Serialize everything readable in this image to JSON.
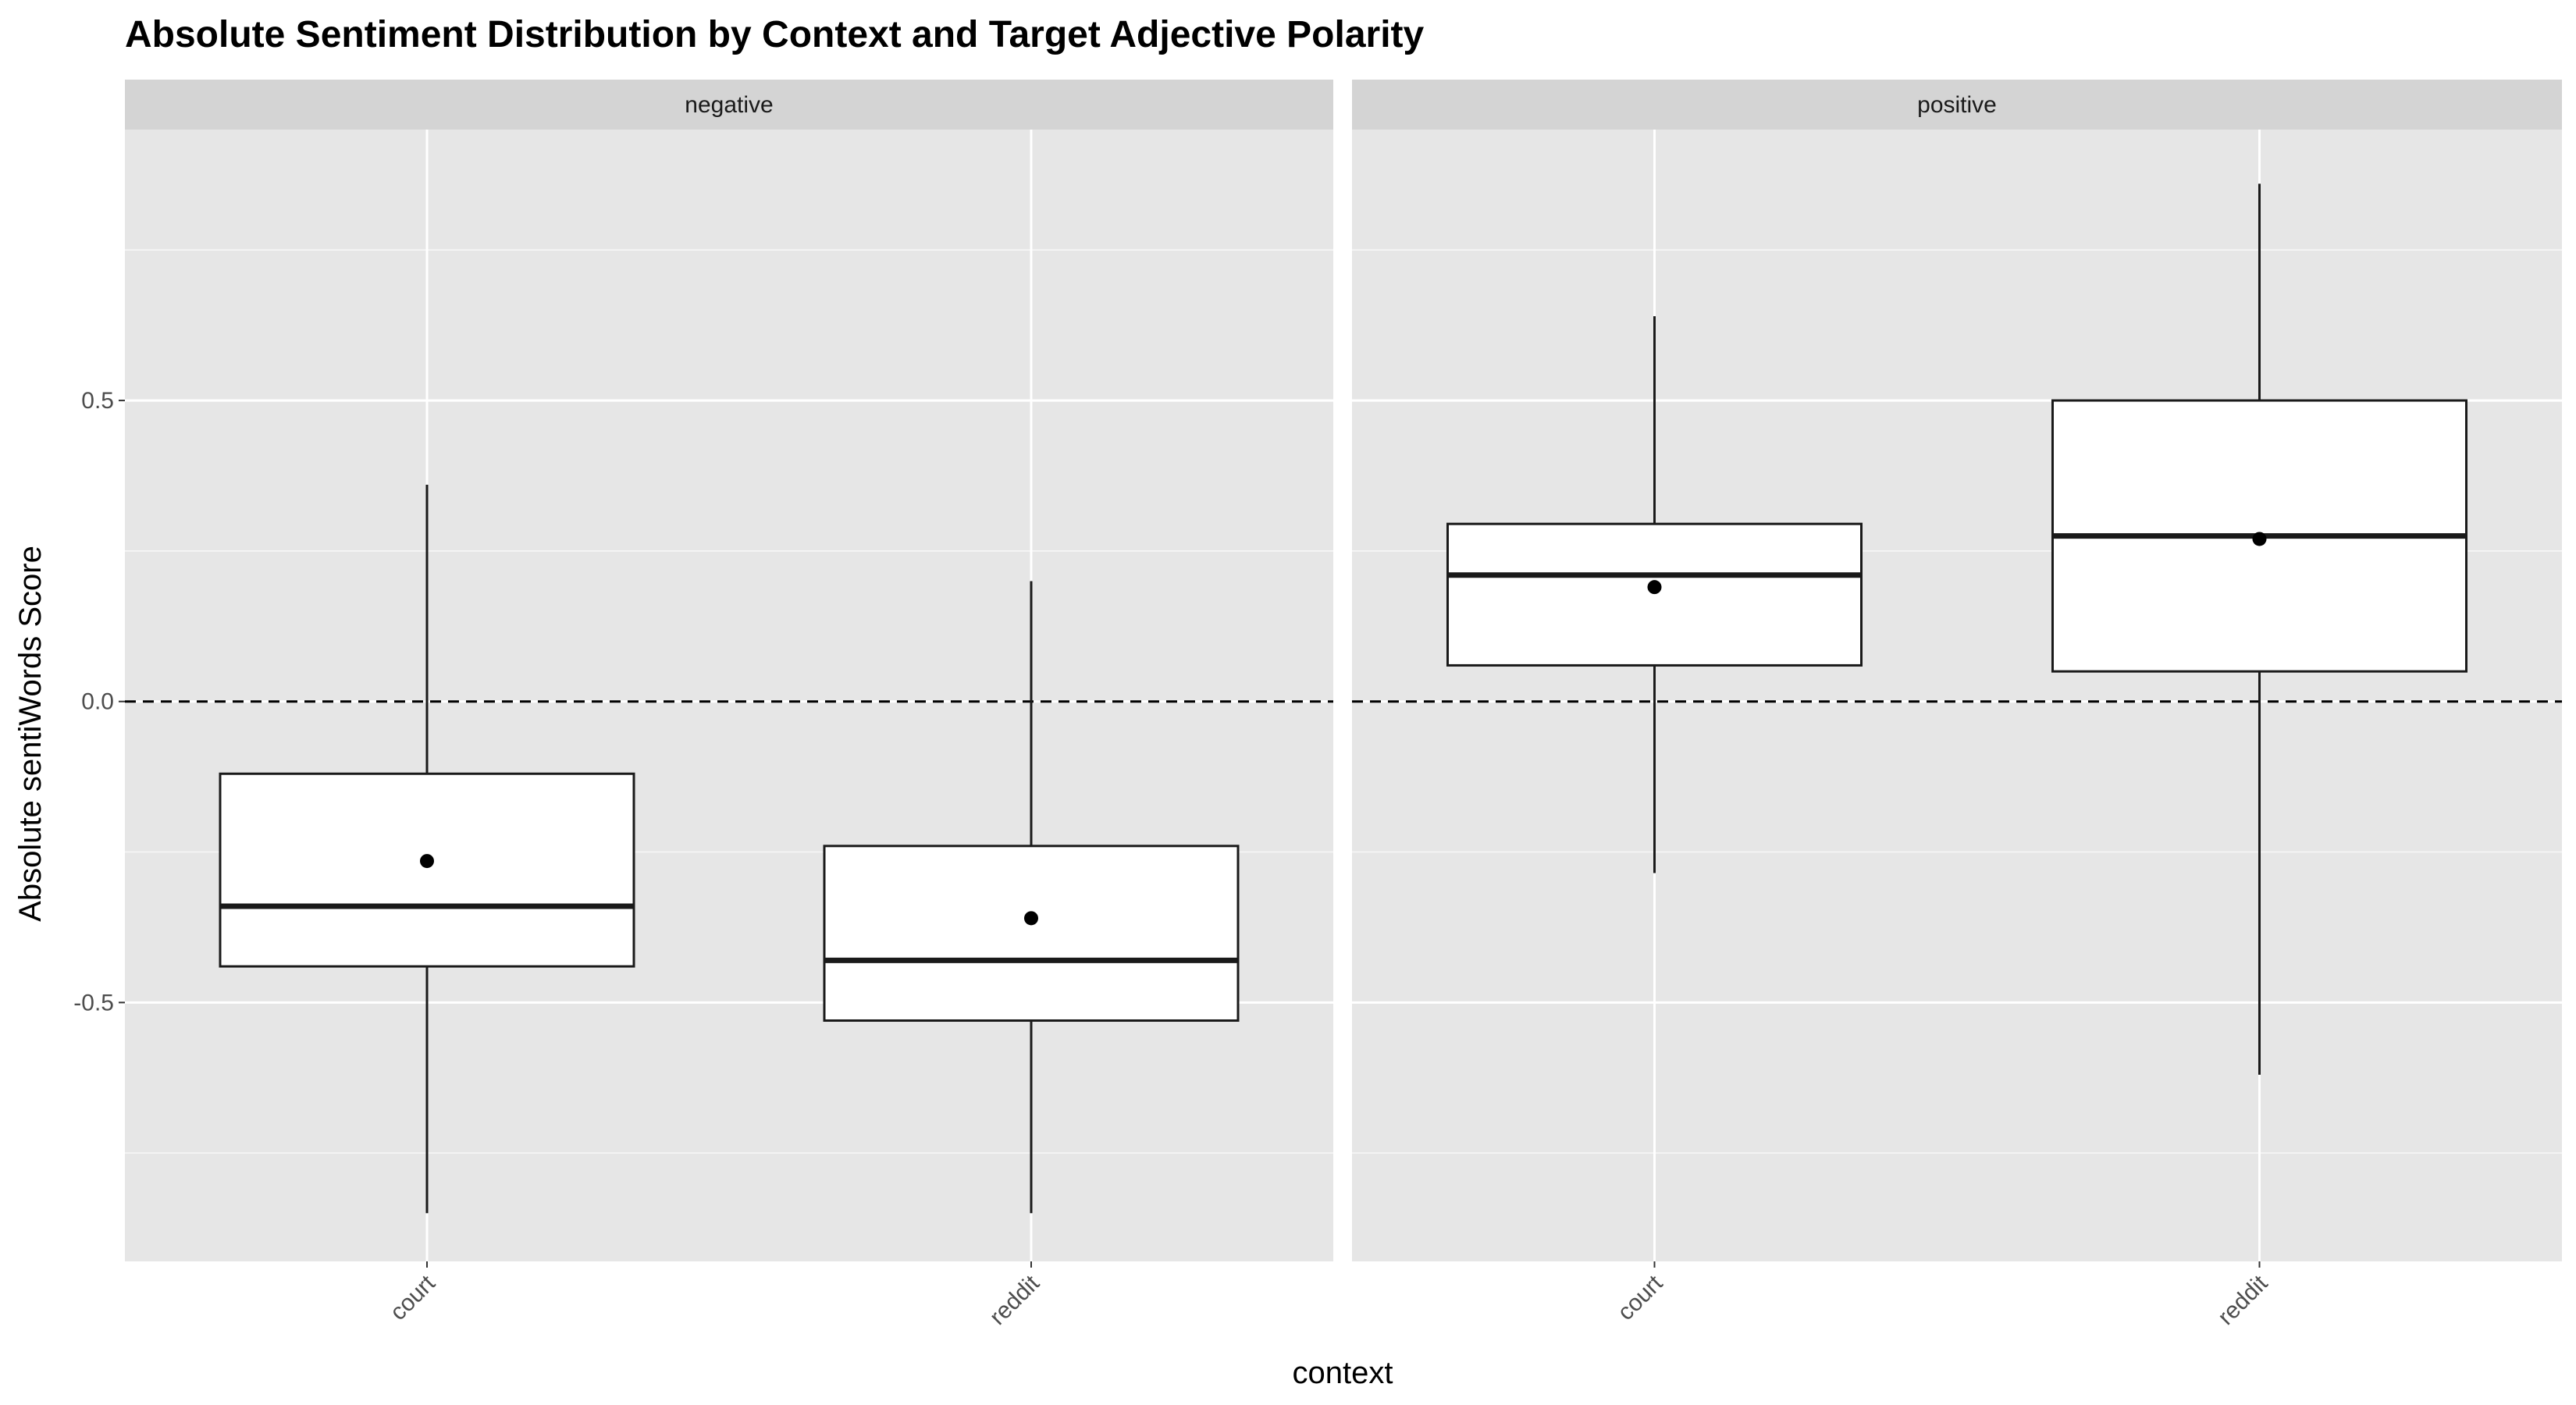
{
  "chart_data": {
    "type": "boxplot",
    "title": "Absolute Sentiment Distribution by Context and Target Adjective Polarity",
    "xlabel": "context",
    "ylabel": "Absolute sentiWords Score",
    "categories": [
      "court",
      "reddit"
    ],
    "ylim": [
      -0.93,
      0.95
    ],
    "yticks": [
      -0.5,
      0.0,
      0.5
    ],
    "ytick_labels": [
      "-0.5",
      "0.0",
      "0.5"
    ],
    "reference_line": {
      "y": 0.0,
      "style": "dashed"
    },
    "grid": true,
    "legend": "none",
    "facets": [
      {
        "label": "negative",
        "boxes": [
          {
            "category": "court",
            "whisker_low": -0.85,
            "q1": -0.44,
            "median": -0.34,
            "q3": -0.12,
            "whisker_high": 0.36,
            "mean": -0.265
          },
          {
            "category": "reddit",
            "whisker_low": -0.85,
            "q1": -0.53,
            "median": -0.43,
            "q3": -0.24,
            "whisker_high": 0.2,
            "mean": -0.36
          }
        ]
      },
      {
        "label": "positive",
        "boxes": [
          {
            "category": "court",
            "whisker_low": -0.285,
            "q1": 0.06,
            "median": 0.21,
            "q3": 0.295,
            "whisker_high": 0.64,
            "mean": 0.19
          },
          {
            "category": "reddit",
            "whisker_low": -0.62,
            "q1": 0.05,
            "median": 0.275,
            "q3": 0.5,
            "whisker_high": 0.86,
            "mean": 0.27
          }
        ]
      }
    ],
    "colors": {
      "panel_bg": "#e6e6e6",
      "strip_bg": "#d4d4d4",
      "grid_major": "#ffffff",
      "box_fill": "#ffffff",
      "box_stroke": "#1a1a1a"
    }
  }
}
